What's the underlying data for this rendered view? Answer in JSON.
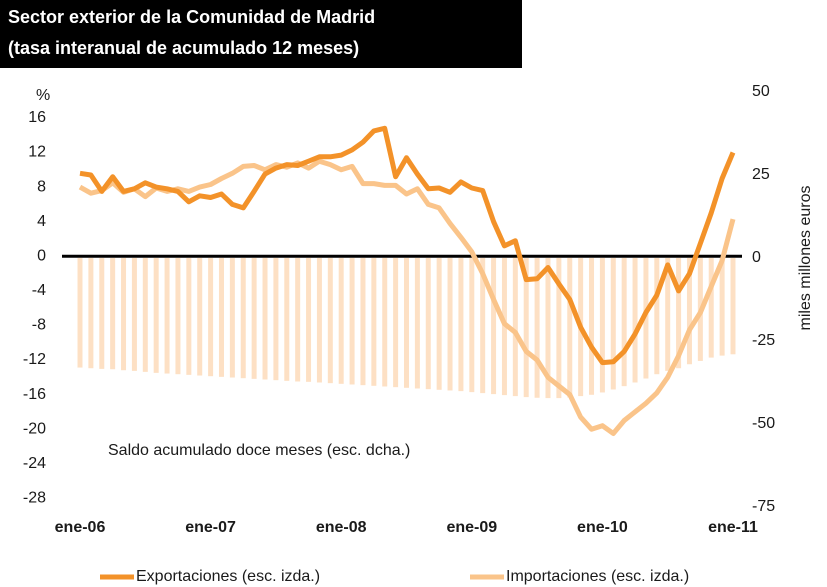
{
  "chart_data": {
    "type": "combo",
    "title": "Sector exterior de la Comunidad de Madrid",
    "subtitle": "(tasa interanual de acumulado 12 meses)",
    "y_label": "%",
    "y2_label": "miles millones euros",
    "categories": [
      "ene-06",
      null,
      null,
      null,
      null,
      null,
      null,
      null,
      null,
      null,
      null,
      null,
      "ene-07",
      null,
      null,
      null,
      null,
      null,
      null,
      null,
      null,
      null,
      null,
      null,
      "ene-08",
      null,
      null,
      null,
      null,
      null,
      null,
      null,
      null,
      null,
      null,
      null,
      "ene-09",
      null,
      null,
      null,
      null,
      null,
      null,
      null,
      null,
      null,
      null,
      null,
      "ene-10",
      null,
      null,
      null,
      null,
      null,
      null,
      null,
      null,
      null,
      null,
      null,
      "ene-11"
    ],
    "ylim": [
      -29,
      19
    ],
    "yticks": [
      16,
      12,
      8,
      4,
      0,
      -4,
      -8,
      -12,
      -16,
      -20,
      -24,
      -28
    ],
    "y2lim": [
      -75,
      50
    ],
    "y2ticks": [
      50,
      25,
      0,
      -25,
      -50,
      -75
    ],
    "series": [
      {
        "name": "Saldo acumulado doce meses (esc. dcha.)",
        "type": "bar",
        "axis": "y2",
        "color": "#fde0c4",
        "values": [
          -33,
          -33.2,
          -33.4,
          -33.5,
          -33.8,
          -34,
          -34.3,
          -34.6,
          -34.8,
          -35,
          -35.2,
          -35.4,
          -35.6,
          -35.8,
          -36,
          -36.2,
          -36.4,
          -36.6,
          -36.8,
          -37,
          -37.2,
          -37.3,
          -37.5,
          -37.7,
          -37.9,
          -38.1,
          -38.3,
          -38.5,
          -38.7,
          -38.9,
          -39.1,
          -39.3,
          -39.5,
          -39.7,
          -39.9,
          -40.1,
          -40.4,
          -40.7,
          -41,
          -41.3,
          -41.6,
          -41.9,
          -42.1,
          -42.2,
          -42.2,
          -42,
          -41.6,
          -41.2,
          -40.5,
          -39.6,
          -38.6,
          -37.5,
          -36.3,
          -35,
          -34,
          -33.2,
          -32,
          -31,
          -30,
          -29.4,
          -29
        ]
      },
      {
        "name": "Importaciones (esc. izda.)",
        "type": "line",
        "axis": "y",
        "color": "#fac48a",
        "values": [
          8,
          7.3,
          7.6,
          8.5,
          7.4,
          7.8,
          6.9,
          7.9,
          7.5,
          7.8,
          7.5,
          8,
          8.3,
          9,
          9.6,
          10.4,
          10.5,
          10,
          10.6,
          10.3,
          10.8,
          10.2,
          11,
          10.6,
          10,
          10.4,
          8.4,
          8.4,
          8.2,
          8.2,
          7.2,
          7.8,
          6,
          5.6,
          3.8,
          2.2,
          0.5,
          -2,
          -5,
          -7.8,
          -8.8,
          -11,
          -12,
          -14,
          -15,
          -16,
          -18.6,
          -20,
          -19.6,
          -20.5,
          -19,
          -18,
          -17,
          -15.8,
          -14,
          -11.5,
          -8.5,
          -6.5,
          -3.5,
          -0.5,
          4.3
        ]
      },
      {
        "name": "Exportaciones (esc. izda.)",
        "type": "line",
        "axis": "y",
        "color": "#f39229",
        "values": [
          9.6,
          9.4,
          7.5,
          9.2,
          7.5,
          7.8,
          8.5,
          8,
          7.8,
          7.5,
          6.3,
          7,
          6.8,
          7.2,
          6,
          5.6,
          7.5,
          9.5,
          10.2,
          10.6,
          10.5,
          11,
          11.5,
          11.5,
          11.7,
          12.3,
          13.2,
          14.5,
          14.8,
          9.2,
          11.4,
          9.5,
          7.8,
          7.9,
          7.4,
          8.6,
          7.9,
          7.6,
          4,
          1.2,
          1.8,
          -2.7,
          -2.6,
          -1.3,
          -3.2,
          -5,
          -8.2,
          -10.5,
          -12.3,
          -12.2,
          -11,
          -9,
          -6.5,
          -4.5,
          -1,
          -4,
          -2,
          1.5,
          5,
          9,
          12
        ]
      }
    ]
  }
}
